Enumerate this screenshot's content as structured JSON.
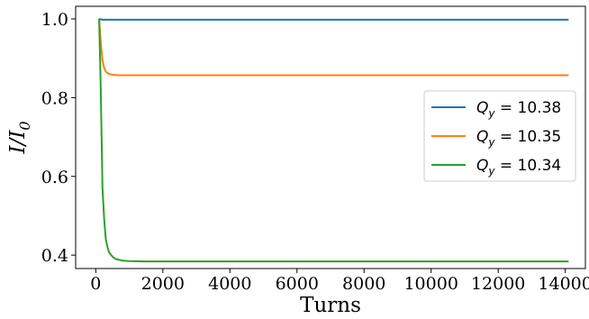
{
  "chart_data": {
    "type": "line",
    "xlabel": "Turns",
    "ylabel": "I/I",
    "ylabel_sub": "0",
    "xlim": [
      -600,
      14600
    ],
    "ylim": [
      0.366,
      1.032
    ],
    "xticks": [
      0,
      2000,
      4000,
      6000,
      8000,
      10000,
      12000,
      14000
    ],
    "yticks": [
      0.4,
      0.6,
      0.8,
      1.0
    ],
    "ytick_labels": [
      "0.4",
      "0.6",
      "0.8",
      "1.0"
    ],
    "grid": false,
    "legend_position": "center-right",
    "series": [
      {
        "name": "Q",
        "name_sub": "y",
        "name_suffix": " = 10.38",
        "color": "#1f77b4",
        "x": [
          100,
          150,
          200,
          300,
          500,
          1000,
          14100
        ],
        "y": [
          1.0,
          0.999,
          0.998,
          0.998,
          0.998,
          0.998,
          0.998
        ]
      },
      {
        "name": "Q",
        "name_sub": "y",
        "name_suffix": " = 10.35",
        "color": "#ff7f0e",
        "x": [
          100,
          150,
          200,
          250,
          300,
          400,
          500,
          700,
          1000,
          14100
        ],
        "y": [
          1.0,
          0.94,
          0.895,
          0.875,
          0.866,
          0.86,
          0.858,
          0.857,
          0.857,
          0.857
        ]
      },
      {
        "name": "Q",
        "name_sub": "y",
        "name_suffix": " = 10.34",
        "color": "#2ca02c",
        "x": [
          100,
          150,
          200,
          250,
          300,
          350,
          400,
          500,
          600,
          800,
          1000,
          1500,
          2000,
          14100
        ],
        "y": [
          1.0,
          0.82,
          0.57,
          0.49,
          0.44,
          0.42,
          0.407,
          0.396,
          0.39,
          0.386,
          0.385,
          0.384,
          0.384,
          0.384
        ]
      }
    ]
  }
}
